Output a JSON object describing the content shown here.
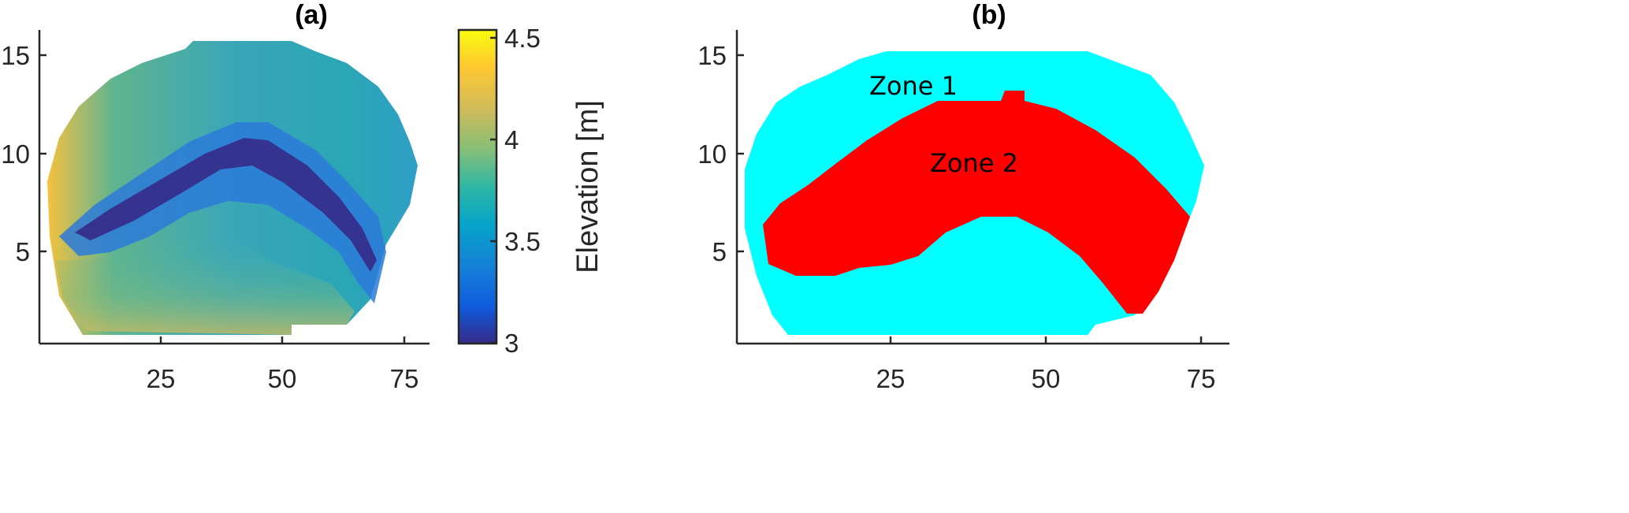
{
  "chart_data": [
    {
      "type": "heatmap",
      "title": "(a)",
      "colorbar": {
        "label": "Elevation [m]",
        "ticks": [
          "4.5",
          "4",
          "3.5",
          "3"
        ],
        "range": [
          3,
          4.5
        ],
        "colormap": "parula"
      },
      "xlim": [
        0,
        80
      ],
      "ylim": [
        0,
        16
      ],
      "xticks": [
        "25",
        "50",
        "75"
      ],
      "yticks": [
        "15",
        "10",
        "5"
      ]
    },
    {
      "type": "heatmap",
      "title": "(b)",
      "xlim": [
        0,
        80
      ],
      "ylim": [
        0,
        16
      ],
      "xticks": [
        "25",
        "50",
        "75"
      ],
      "yticks": [
        "15",
        "10",
        "5"
      ],
      "zones": [
        {
          "label": "Zone 1",
          "color": "#00ffff"
        },
        {
          "label": "Zone 2",
          "color": "#ff0000"
        }
      ]
    }
  ]
}
